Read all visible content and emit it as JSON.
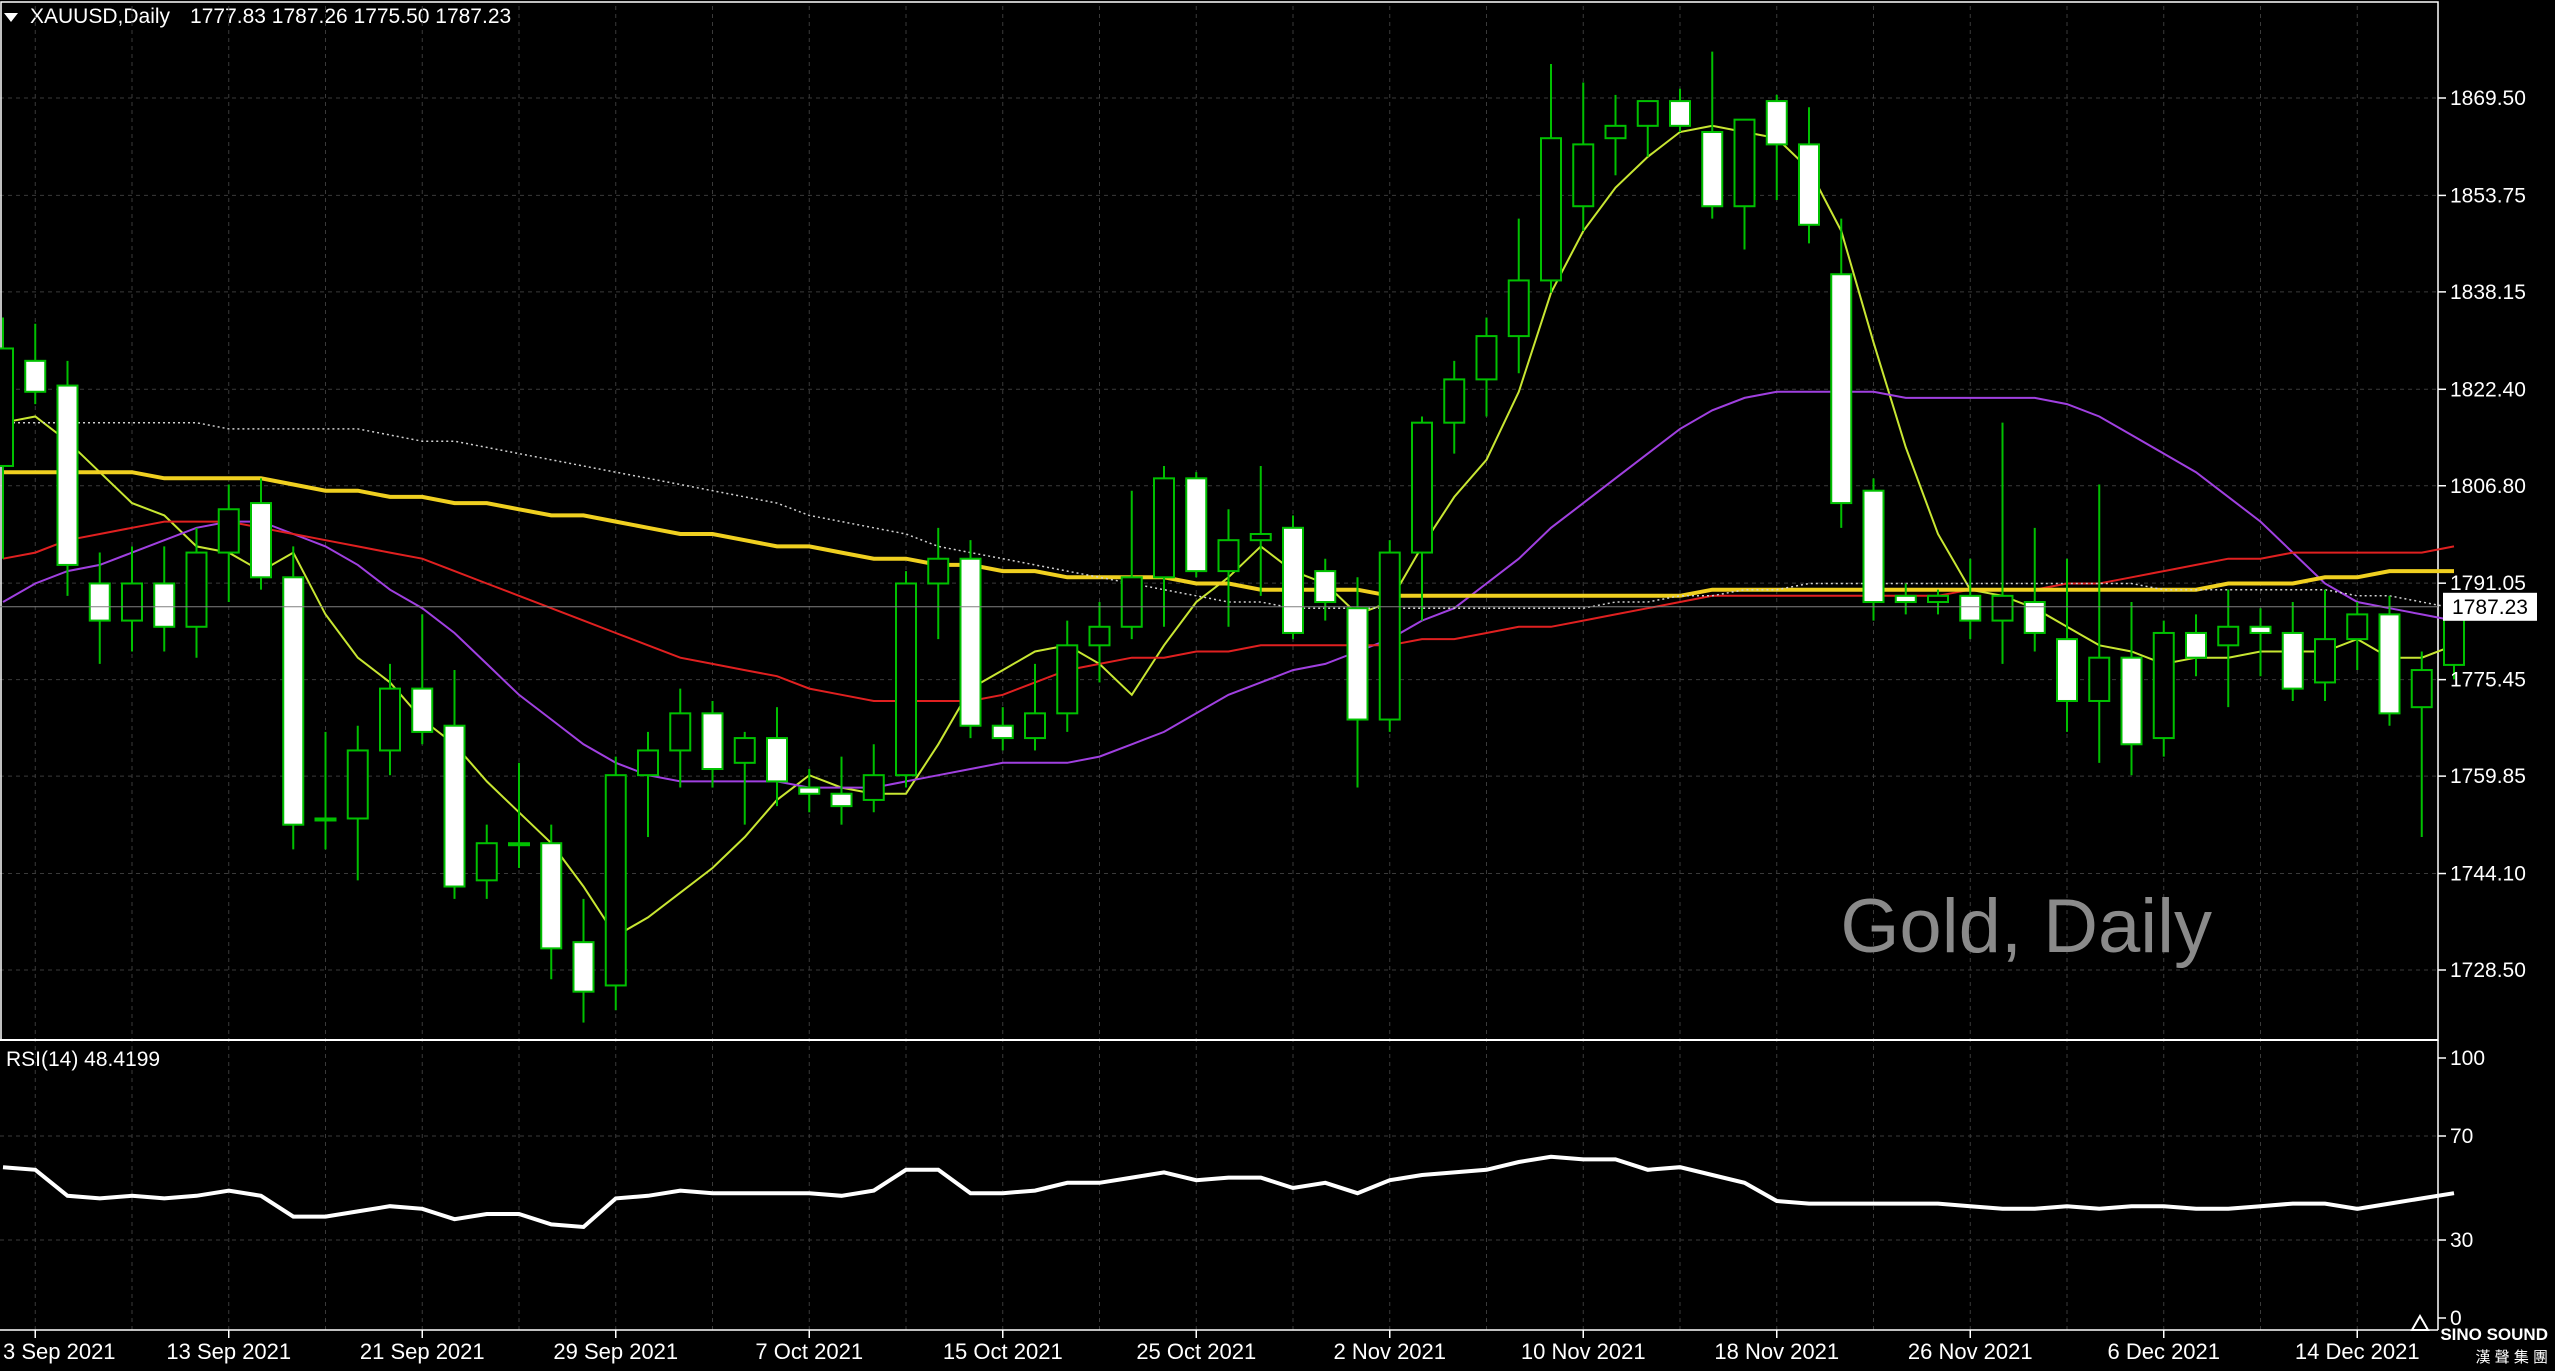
{
  "header": {
    "symbol": "XAUUSD,Daily",
    "ohlc": "1777.83 1787.26 1775.50 1787.23"
  },
  "watermark": "Gold, Daily",
  "rsi_label": "RSI(14) 48.4199",
  "current_price_label": "1787.23",
  "logo": {
    "line1": "SINO SOUND",
    "line2": "漢 聲 集 團"
  },
  "colors": {
    "background": "#000000",
    "grid": "#3a3a3a",
    "bull_candle": "#000000",
    "bear_candle": "#ffffff",
    "wick": "#00c000",
    "ma_fast": "#c8e632",
    "ma_mid": "#a040e0",
    "ma_slow": "#e02020",
    "ma_yellow": "#f0d020",
    "ma_dotted": "#d0d0d0",
    "rsi_line": "#ffffff",
    "text": "#ffffff",
    "watermark": "#8a8a8a"
  },
  "chart_data": {
    "type": "candlestick",
    "symbol": "XAUUSD",
    "timeframe": "Daily",
    "price_ticks": [
      1869.5,
      1853.75,
      1838.15,
      1822.4,
      1806.8,
      1791.05,
      1775.45,
      1759.85,
      1744.1,
      1728.5
    ],
    "price_tick_labels": [
      "1869.50",
      "1853.75",
      "1838.15",
      "1822.40",
      "1806.80",
      "1791.05",
      "1775.45",
      "1759.85",
      "1744.10",
      "1728.50"
    ],
    "ylim": [
      1720.0,
      1884.0
    ],
    "current_price": 1787.23,
    "x_tick_labels": [
      {
        "index": 1,
        "label": "3 Sep 2021"
      },
      {
        "index": 7,
        "label": "13 Sep 2021"
      },
      {
        "index": 13,
        "label": "21 Sep 2021"
      },
      {
        "index": 19,
        "label": "29 Sep 2021"
      },
      {
        "index": 25,
        "label": "7 Oct 2021"
      },
      {
        "index": 31,
        "label": "15 Oct 2021"
      },
      {
        "index": 37,
        "label": "25 Oct 2021"
      },
      {
        "index": 43,
        "label": "2 Nov 2021"
      },
      {
        "index": 49,
        "label": "10 Nov 2021"
      },
      {
        "index": 55,
        "label": "18 Nov 2021"
      },
      {
        "index": 61,
        "label": "26 Nov 2021"
      },
      {
        "index": 67,
        "label": "6 Dec 2021"
      },
      {
        "index": 73,
        "label": "14 Dec 2021"
      }
    ],
    "candles": [
      {
        "o": 1810,
        "h": 1834,
        "l": 1795,
        "c": 1829
      },
      {
        "o": 1827,
        "h": 1833,
        "l": 1820,
        "c": 1822
      },
      {
        "o": 1823,
        "h": 1827,
        "l": 1789,
        "c": 1794
      },
      {
        "o": 1791,
        "h": 1796,
        "l": 1778,
        "c": 1785
      },
      {
        "o": 1785,
        "h": 1797,
        "l": 1780,
        "c": 1791
      },
      {
        "o": 1791,
        "h": 1797,
        "l": 1780,
        "c": 1784
      },
      {
        "o": 1784,
        "h": 1800,
        "l": 1779,
        "c": 1796
      },
      {
        "o": 1796,
        "h": 1807,
        "l": 1788,
        "c": 1803
      },
      {
        "o": 1804,
        "h": 1808,
        "l": 1790,
        "c": 1792
      },
      {
        "o": 1792,
        "h": 1797,
        "l": 1748,
        "c": 1752
      },
      {
        "o": 1753,
        "h": 1767,
        "l": 1748,
        "c": 1753
      },
      {
        "o": 1753,
        "h": 1768,
        "l": 1743,
        "c": 1764
      },
      {
        "o": 1764,
        "h": 1778,
        "l": 1760,
        "c": 1774
      },
      {
        "o": 1774,
        "h": 1786,
        "l": 1765,
        "c": 1767
      },
      {
        "o": 1768,
        "h": 1777,
        "l": 1740,
        "c": 1742
      },
      {
        "o": 1743,
        "h": 1752,
        "l": 1740,
        "c": 1749
      },
      {
        "o": 1749,
        "h": 1762,
        "l": 1745,
        "c": 1749
      },
      {
        "o": 1749,
        "h": 1752,
        "l": 1727,
        "c": 1732
      },
      {
        "o": 1733,
        "h": 1740,
        "l": 1720,
        "c": 1725
      },
      {
        "o": 1726,
        "h": 1763,
        "l": 1722,
        "c": 1760
      },
      {
        "o": 1760,
        "h": 1767,
        "l": 1750,
        "c": 1764
      },
      {
        "o": 1764,
        "h": 1774,
        "l": 1758,
        "c": 1770
      },
      {
        "o": 1770,
        "h": 1772,
        "l": 1758,
        "c": 1761
      },
      {
        "o": 1762,
        "h": 1767,
        "l": 1752,
        "c": 1766
      },
      {
        "o": 1766,
        "h": 1771,
        "l": 1755,
        "c": 1759
      },
      {
        "o": 1758,
        "h": 1761,
        "l": 1754,
        "c": 1757
      },
      {
        "o": 1757,
        "h": 1763,
        "l": 1752,
        "c": 1755
      },
      {
        "o": 1756,
        "h": 1765,
        "l": 1754,
        "c": 1760
      },
      {
        "o": 1760,
        "h": 1793,
        "l": 1758,
        "c": 1791
      },
      {
        "o": 1791,
        "h": 1800,
        "l": 1782,
        "c": 1795
      },
      {
        "o": 1795,
        "h": 1798,
        "l": 1766,
        "c": 1768
      },
      {
        "o": 1768,
        "h": 1771,
        "l": 1764,
        "c": 1766
      },
      {
        "o": 1766,
        "h": 1778,
        "l": 1764,
        "c": 1770
      },
      {
        "o": 1770,
        "h": 1785,
        "l": 1767,
        "c": 1781
      },
      {
        "o": 1781,
        "h": 1788,
        "l": 1775,
        "c": 1784
      },
      {
        "o": 1784,
        "h": 1806,
        "l": 1782,
        "c": 1792
      },
      {
        "o": 1792,
        "h": 1810,
        "l": 1784,
        "c": 1808
      },
      {
        "o": 1808,
        "h": 1809,
        "l": 1792,
        "c": 1793
      },
      {
        "o": 1793,
        "h": 1803,
        "l": 1784,
        "c": 1798
      },
      {
        "o": 1798,
        "h": 1810,
        "l": 1789,
        "c": 1799
      },
      {
        "o": 1800,
        "h": 1802,
        "l": 1782,
        "c": 1783
      },
      {
        "o": 1793,
        "h": 1795,
        "l": 1785,
        "c": 1788
      },
      {
        "o": 1787,
        "h": 1792,
        "l": 1758,
        "c": 1769
      },
      {
        "o": 1769,
        "h": 1798,
        "l": 1767,
        "c": 1796
      },
      {
        "o": 1796,
        "h": 1818,
        "l": 1785,
        "c": 1817
      },
      {
        "o": 1817,
        "h": 1827,
        "l": 1812,
        "c": 1824
      },
      {
        "o": 1824,
        "h": 1834,
        "l": 1818,
        "c": 1831
      },
      {
        "o": 1831,
        "h": 1850,
        "l": 1825,
        "c": 1840
      },
      {
        "o": 1840,
        "h": 1875,
        "l": 1838,
        "c": 1863
      },
      {
        "o": 1852,
        "h": 1872,
        "l": 1848,
        "c": 1862
      },
      {
        "o": 1863,
        "h": 1870,
        "l": 1857,
        "c": 1865
      },
      {
        "o": 1865,
        "h": 1868,
        "l": 1860,
        "c": 1869
      },
      {
        "o": 1869,
        "h": 1871,
        "l": 1864,
        "c": 1865
      },
      {
        "o": 1864,
        "h": 1877,
        "l": 1850,
        "c": 1852
      },
      {
        "o": 1852,
        "h": 1866,
        "l": 1845,
        "c": 1866
      },
      {
        "o": 1869,
        "h": 1870,
        "l": 1853,
        "c": 1862
      },
      {
        "o": 1862,
        "h": 1868,
        "l": 1846,
        "c": 1849
      },
      {
        "o": 1841,
        "h": 1850,
        "l": 1800,
        "c": 1804
      },
      {
        "o": 1806,
        "h": 1808,
        "l": 1785,
        "c": 1788
      },
      {
        "o": 1789,
        "h": 1791,
        "l": 1786,
        "c": 1788
      },
      {
        "o": 1788,
        "h": 1790,
        "l": 1786,
        "c": 1789
      },
      {
        "o": 1789,
        "h": 1795,
        "l": 1782,
        "c": 1785
      },
      {
        "o": 1785,
        "h": 1817,
        "l": 1778,
        "c": 1789
      },
      {
        "o": 1788,
        "h": 1800,
        "l": 1780,
        "c": 1783
      },
      {
        "o": 1782,
        "h": 1795,
        "l": 1767,
        "c": 1772
      },
      {
        "o": 1772,
        "h": 1807,
        "l": 1762,
        "c": 1779
      },
      {
        "o": 1779,
        "h": 1788,
        "l": 1760,
        "c": 1765
      },
      {
        "o": 1766,
        "h": 1785,
        "l": 1763,
        "c": 1783
      },
      {
        "o": 1783,
        "h": 1786,
        "l": 1776,
        "c": 1779
      },
      {
        "o": 1781,
        "h": 1790,
        "l": 1771,
        "c": 1784
      },
      {
        "o": 1784,
        "h": 1787,
        "l": 1776,
        "c": 1783
      },
      {
        "o": 1783,
        "h": 1788,
        "l": 1772,
        "c": 1774
      },
      {
        "o": 1775,
        "h": 1790,
        "l": 1772,
        "c": 1782
      },
      {
        "o": 1782,
        "h": 1788,
        "l": 1777,
        "c": 1786
      },
      {
        "o": 1786,
        "h": 1789,
        "l": 1768,
        "c": 1770
      },
      {
        "o": 1771,
        "h": 1780,
        "l": 1750,
        "c": 1777
      },
      {
        "o": 1777.83,
        "h": 1787.26,
        "l": 1775.5,
        "c": 1787.23
      }
    ],
    "indicators": [
      {
        "type": "moving_average",
        "color_key": "ma_fast",
        "values": [
          1817,
          1818,
          1814,
          1809,
          1804,
          1802,
          1797,
          1796,
          1793,
          1796,
          1786,
          1779,
          1775,
          1769,
          1765,
          1759,
          1754,
          1749,
          1742,
          1734,
          1737,
          1741,
          1745,
          1750,
          1756,
          1760,
          1758,
          1757,
          1757,
          1765,
          1774,
          1777,
          1780,
          1781,
          1778,
          1773,
          1781,
          1788,
          1792,
          1797,
          1793,
          1791,
          1786,
          1788,
          1797,
          1805,
          1811,
          1822,
          1838,
          1848,
          1855,
          1860,
          1864,
          1865,
          1864,
          1863,
          1858,
          1848,
          1830,
          1813,
          1799,
          1790,
          1789,
          1787,
          1784,
          1781,
          1780,
          1778,
          1779,
          1779,
          1780,
          1780,
          1780,
          1782,
          1779,
          1779,
          1781
        ]
      },
      {
        "type": "moving_average",
        "color_key": "ma_mid",
        "values": [
          1788,
          1791,
          1793,
          1794,
          1796,
          1798,
          1800,
          1801,
          1801,
          1799,
          1797,
          1794,
          1790,
          1787,
          1783,
          1778,
          1773,
          1769,
          1765,
          1762,
          1760,
          1759,
          1759,
          1759,
          1759,
          1758,
          1758,
          1758,
          1759,
          1760,
          1761,
          1762,
          1762,
          1762,
          1763,
          1765,
          1767,
          1770,
          1773,
          1775,
          1777,
          1778,
          1780,
          1782,
          1785,
          1787,
          1791,
          1795,
          1800,
          1804,
          1808,
          1812,
          1816,
          1819,
          1821,
          1822,
          1822,
          1822,
          1822,
          1821,
          1821,
          1821,
          1821,
          1821,
          1820,
          1818,
          1815,
          1812,
          1809,
          1805,
          1801,
          1796,
          1791,
          1788,
          1787,
          1786,
          1785
        ]
      },
      {
        "type": "moving_average",
        "color_key": "ma_slow",
        "values": [
          1795,
          1796,
          1798,
          1799,
          1800,
          1801,
          1801,
          1801,
          1800,
          1799,
          1798,
          1797,
          1796,
          1795,
          1793,
          1791,
          1789,
          1787,
          1785,
          1783,
          1781,
          1779,
          1778,
          1777,
          1776,
          1774,
          1773,
          1772,
          1772,
          1772,
          1772,
          1773,
          1775,
          1777,
          1778,
          1779,
          1779,
          1780,
          1780,
          1781,
          1781,
          1781,
          1781,
          1781,
          1782,
          1782,
          1783,
          1784,
          1784,
          1785,
          1786,
          1787,
          1788,
          1789,
          1789,
          1789,
          1789,
          1789,
          1789,
          1789,
          1789,
          1790,
          1790,
          1790,
          1791,
          1791,
          1792,
          1793,
          1794,
          1795,
          1795,
          1796,
          1796,
          1796,
          1796,
          1796,
          1797
        ]
      },
      {
        "type": "moving_average",
        "color_key": "ma_yellow",
        "values": [
          1809,
          1809,
          1809,
          1809,
          1809,
          1808,
          1808,
          1808,
          1808,
          1807,
          1806,
          1806,
          1805,
          1805,
          1804,
          1804,
          1803,
          1802,
          1802,
          1801,
          1800,
          1799,
          1799,
          1798,
          1797,
          1797,
          1796,
          1795,
          1795,
          1794,
          1794,
          1793,
          1793,
          1792,
          1792,
          1792,
          1792,
          1791,
          1791,
          1790,
          1790,
          1790,
          1790,
          1789,
          1789,
          1789,
          1789,
          1789,
          1789,
          1789,
          1789,
          1789,
          1789,
          1790,
          1790,
          1790,
          1790,
          1790,
          1790,
          1790,
          1790,
          1790,
          1790,
          1790,
          1790,
          1790,
          1790,
          1790,
          1790,
          1791,
          1791,
          1791,
          1792,
          1792,
          1793,
          1793,
          1793
        ]
      },
      {
        "type": "moving_average",
        "color_key": "ma_dotted",
        "values": [
          1817,
          1817,
          1817,
          1817,
          1817,
          1817,
          1817,
          1816,
          1816,
          1816,
          1816,
          1816,
          1815,
          1814,
          1814,
          1813,
          1812,
          1811,
          1810,
          1809,
          1808,
          1807,
          1806,
          1805,
          1804,
          1802,
          1801,
          1800,
          1799,
          1797,
          1796,
          1795,
          1794,
          1793,
          1792,
          1791,
          1790,
          1789,
          1788,
          1788,
          1787,
          1787,
          1787,
          1787,
          1787,
          1787,
          1787,
          1787,
          1787,
          1787,
          1788,
          1788,
          1789,
          1789,
          1790,
          1790,
          1791,
          1791,
          1791,
          1791,
          1791,
          1791,
          1791,
          1791,
          1791,
          1791,
          1791,
          1790,
          1790,
          1790,
          1790,
          1790,
          1790,
          1789,
          1789,
          1788,
          1787
        ]
      }
    ],
    "rsi": {
      "label": "RSI(14)",
      "value": 48.4199,
      "ticks": [
        0,
        30,
        70,
        100
      ],
      "ylim": [
        0,
        100
      ],
      "values": [
        58,
        57,
        47,
        46,
        47,
        46,
        47,
        49,
        47,
        39,
        39,
        41,
        43,
        42,
        38,
        40,
        40,
        36,
        35,
        46,
        47,
        49,
        48,
        48,
        48,
        48,
        47,
        49,
        57,
        57,
        48,
        48,
        49,
        52,
        52,
        54,
        56,
        53,
        54,
        54,
        50,
        52,
        48,
        53,
        55,
        56,
        57,
        60,
        62,
        61,
        61,
        57,
        58,
        55,
        52,
        45,
        44,
        44,
        44,
        44,
        44,
        43,
        42,
        42,
        43,
        42,
        43,
        43,
        42,
        42,
        43,
        44,
        44,
        42,
        44,
        46,
        48
      ]
    }
  }
}
